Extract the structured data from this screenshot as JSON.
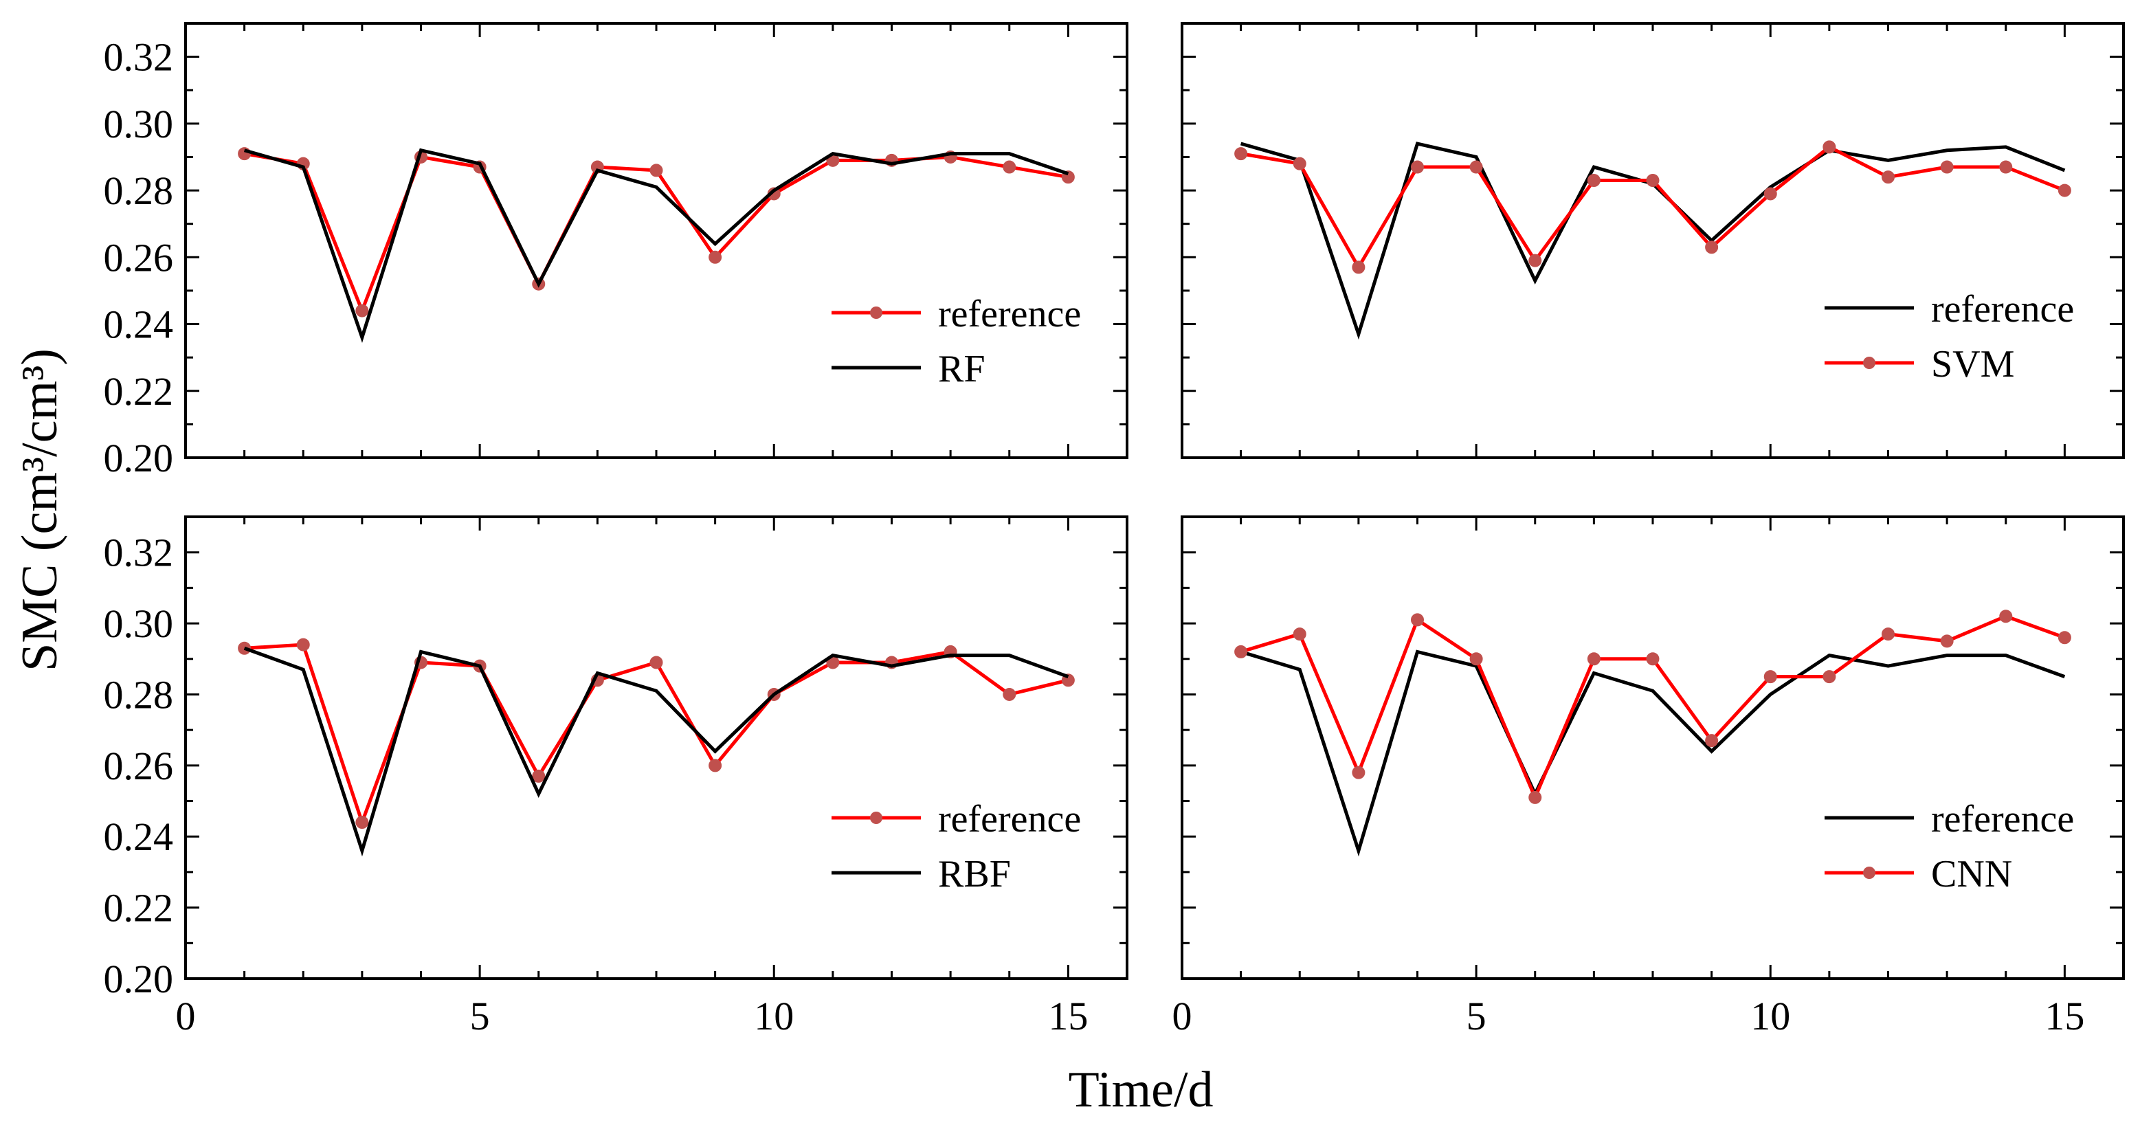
{
  "chart_data": {
    "type": "line",
    "ylabel": "SMC (cm³/cm³)",
    "xlabel": "Time/d",
    "xlim": [
      0,
      16
    ],
    "ylim": [
      0.2,
      0.33
    ],
    "xticks": [
      "0",
      "5",
      "10",
      "15"
    ],
    "yticks": [
      "0.20",
      "0.22",
      "0.24",
      "0.26",
      "0.28",
      "0.30",
      "0.32"
    ],
    "colors": {
      "black": "#000000",
      "red": "#ff0000",
      "marker": "#c0504d"
    },
    "panels": [
      {
        "series": [
          {
            "name": "reference",
            "style": "red-marker",
            "x": [
              1,
              2,
              3,
              4,
              5,
              6,
              7,
              8,
              9,
              10,
              11,
              12,
              13,
              14,
              15
            ],
            "values": [
              0.291,
              0.288,
              0.244,
              0.29,
              0.287,
              0.252,
              0.287,
              0.286,
              0.26,
              0.279,
              0.289,
              0.289,
              0.29,
              0.287,
              0.284
            ]
          },
          {
            "name": "RF",
            "style": "black",
            "x": [
              1,
              2,
              3,
              4,
              5,
              6,
              7,
              8,
              9,
              10,
              11,
              12,
              13,
              14,
              15
            ],
            "values": [
              0.292,
              0.287,
              0.236,
              0.292,
              0.288,
              0.252,
              0.286,
              0.281,
              0.264,
              0.28,
              0.291,
              0.288,
              0.291,
              0.291,
              0.285
            ]
          }
        ]
      },
      {
        "series": [
          {
            "name": "reference",
            "style": "black",
            "x": [
              1,
              2,
              3,
              4,
              5,
              6,
              7,
              8,
              9,
              10,
              11,
              12,
              13,
              14,
              15
            ],
            "values": [
              0.294,
              0.289,
              0.237,
              0.294,
              0.29,
              0.253,
              0.287,
              0.282,
              0.265,
              0.281,
              0.292,
              0.289,
              0.292,
              0.293,
              0.286
            ]
          },
          {
            "name": "SVM",
            "style": "red-marker",
            "x": [
              1,
              2,
              3,
              4,
              5,
              6,
              7,
              8,
              9,
              10,
              11,
              12,
              13,
              14,
              15
            ],
            "values": [
              0.291,
              0.288,
              0.257,
              0.287,
              0.287,
              0.259,
              0.283,
              0.283,
              0.263,
              0.279,
              0.293,
              0.284,
              0.287,
              0.287,
              0.28
            ]
          }
        ]
      },
      {
        "series": [
          {
            "name": "reference",
            "style": "red-marker",
            "x": [
              1,
              2,
              3,
              4,
              5,
              6,
              7,
              8,
              9,
              10,
              11,
              12,
              13,
              14,
              15
            ],
            "values": [
              0.293,
              0.294,
              0.244,
              0.289,
              0.288,
              0.257,
              0.284,
              0.289,
              0.26,
              0.28,
              0.289,
              0.289,
              0.292,
              0.28,
              0.284
            ]
          },
          {
            "name": "RBF",
            "style": "black",
            "x": [
              1,
              2,
              3,
              4,
              5,
              6,
              7,
              8,
              9,
              10,
              11,
              12,
              13,
              14,
              15
            ],
            "values": [
              0.293,
              0.287,
              0.236,
              0.292,
              0.288,
              0.252,
              0.286,
              0.281,
              0.264,
              0.28,
              0.291,
              0.288,
              0.291,
              0.291,
              0.285
            ]
          }
        ]
      },
      {
        "series": [
          {
            "name": "reference",
            "style": "black",
            "x": [
              1,
              2,
              3,
              4,
              5,
              6,
              7,
              8,
              9,
              10,
              11,
              12,
              13,
              14,
              15
            ],
            "values": [
              0.292,
              0.287,
              0.236,
              0.292,
              0.288,
              0.252,
              0.286,
              0.281,
              0.264,
              0.28,
              0.291,
              0.288,
              0.291,
              0.291,
              0.285
            ]
          },
          {
            "name": "CNN",
            "style": "red-marker",
            "x": [
              1,
              2,
              3,
              4,
              5,
              6,
              7,
              8,
              9,
              10,
              11,
              12,
              13,
              14,
              15
            ],
            "values": [
              0.292,
              0.297,
              0.258,
              0.301,
              0.29,
              0.251,
              0.29,
              0.29,
              0.267,
              0.285,
              0.285,
              0.297,
              0.295,
              0.302,
              0.296
            ]
          }
        ]
      }
    ]
  }
}
